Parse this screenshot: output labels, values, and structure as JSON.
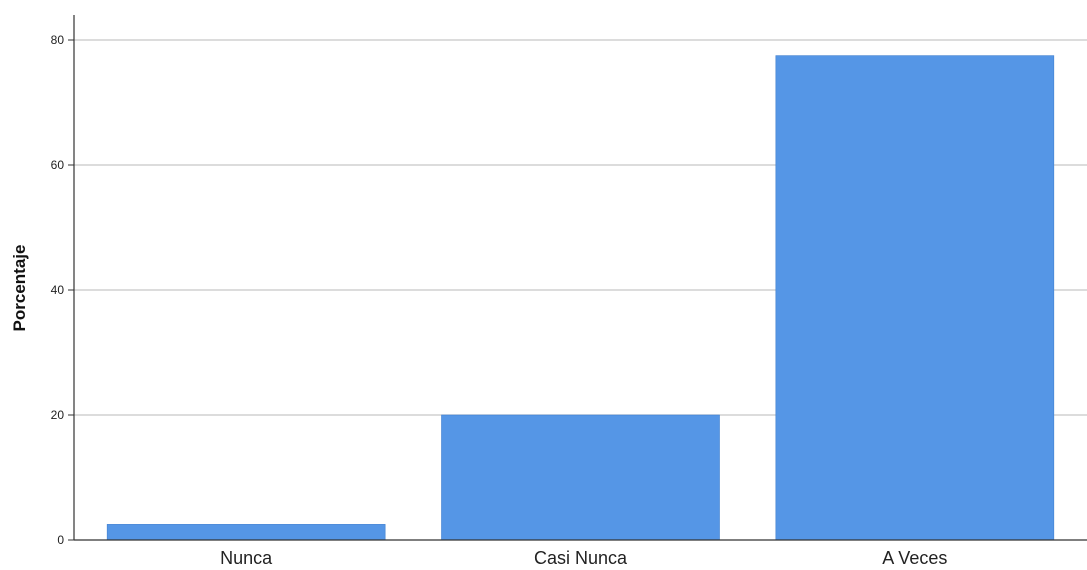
{
  "chart_data": {
    "type": "bar",
    "title": "",
    "xlabel": "",
    "ylabel": "Porcentaje",
    "categories": [
      "Nunca",
      "Casi Nunca",
      "A Veces"
    ],
    "values": [
      2.5,
      20.0,
      77.5
    ],
    "ylim": [
      0,
      85
    ],
    "yticks": [
      0,
      20,
      40,
      60,
      80
    ],
    "grid": "horizontal",
    "bar_color": "#5596E6",
    "grid_color": "#C8C8C8",
    "axis_color": "#333333"
  }
}
